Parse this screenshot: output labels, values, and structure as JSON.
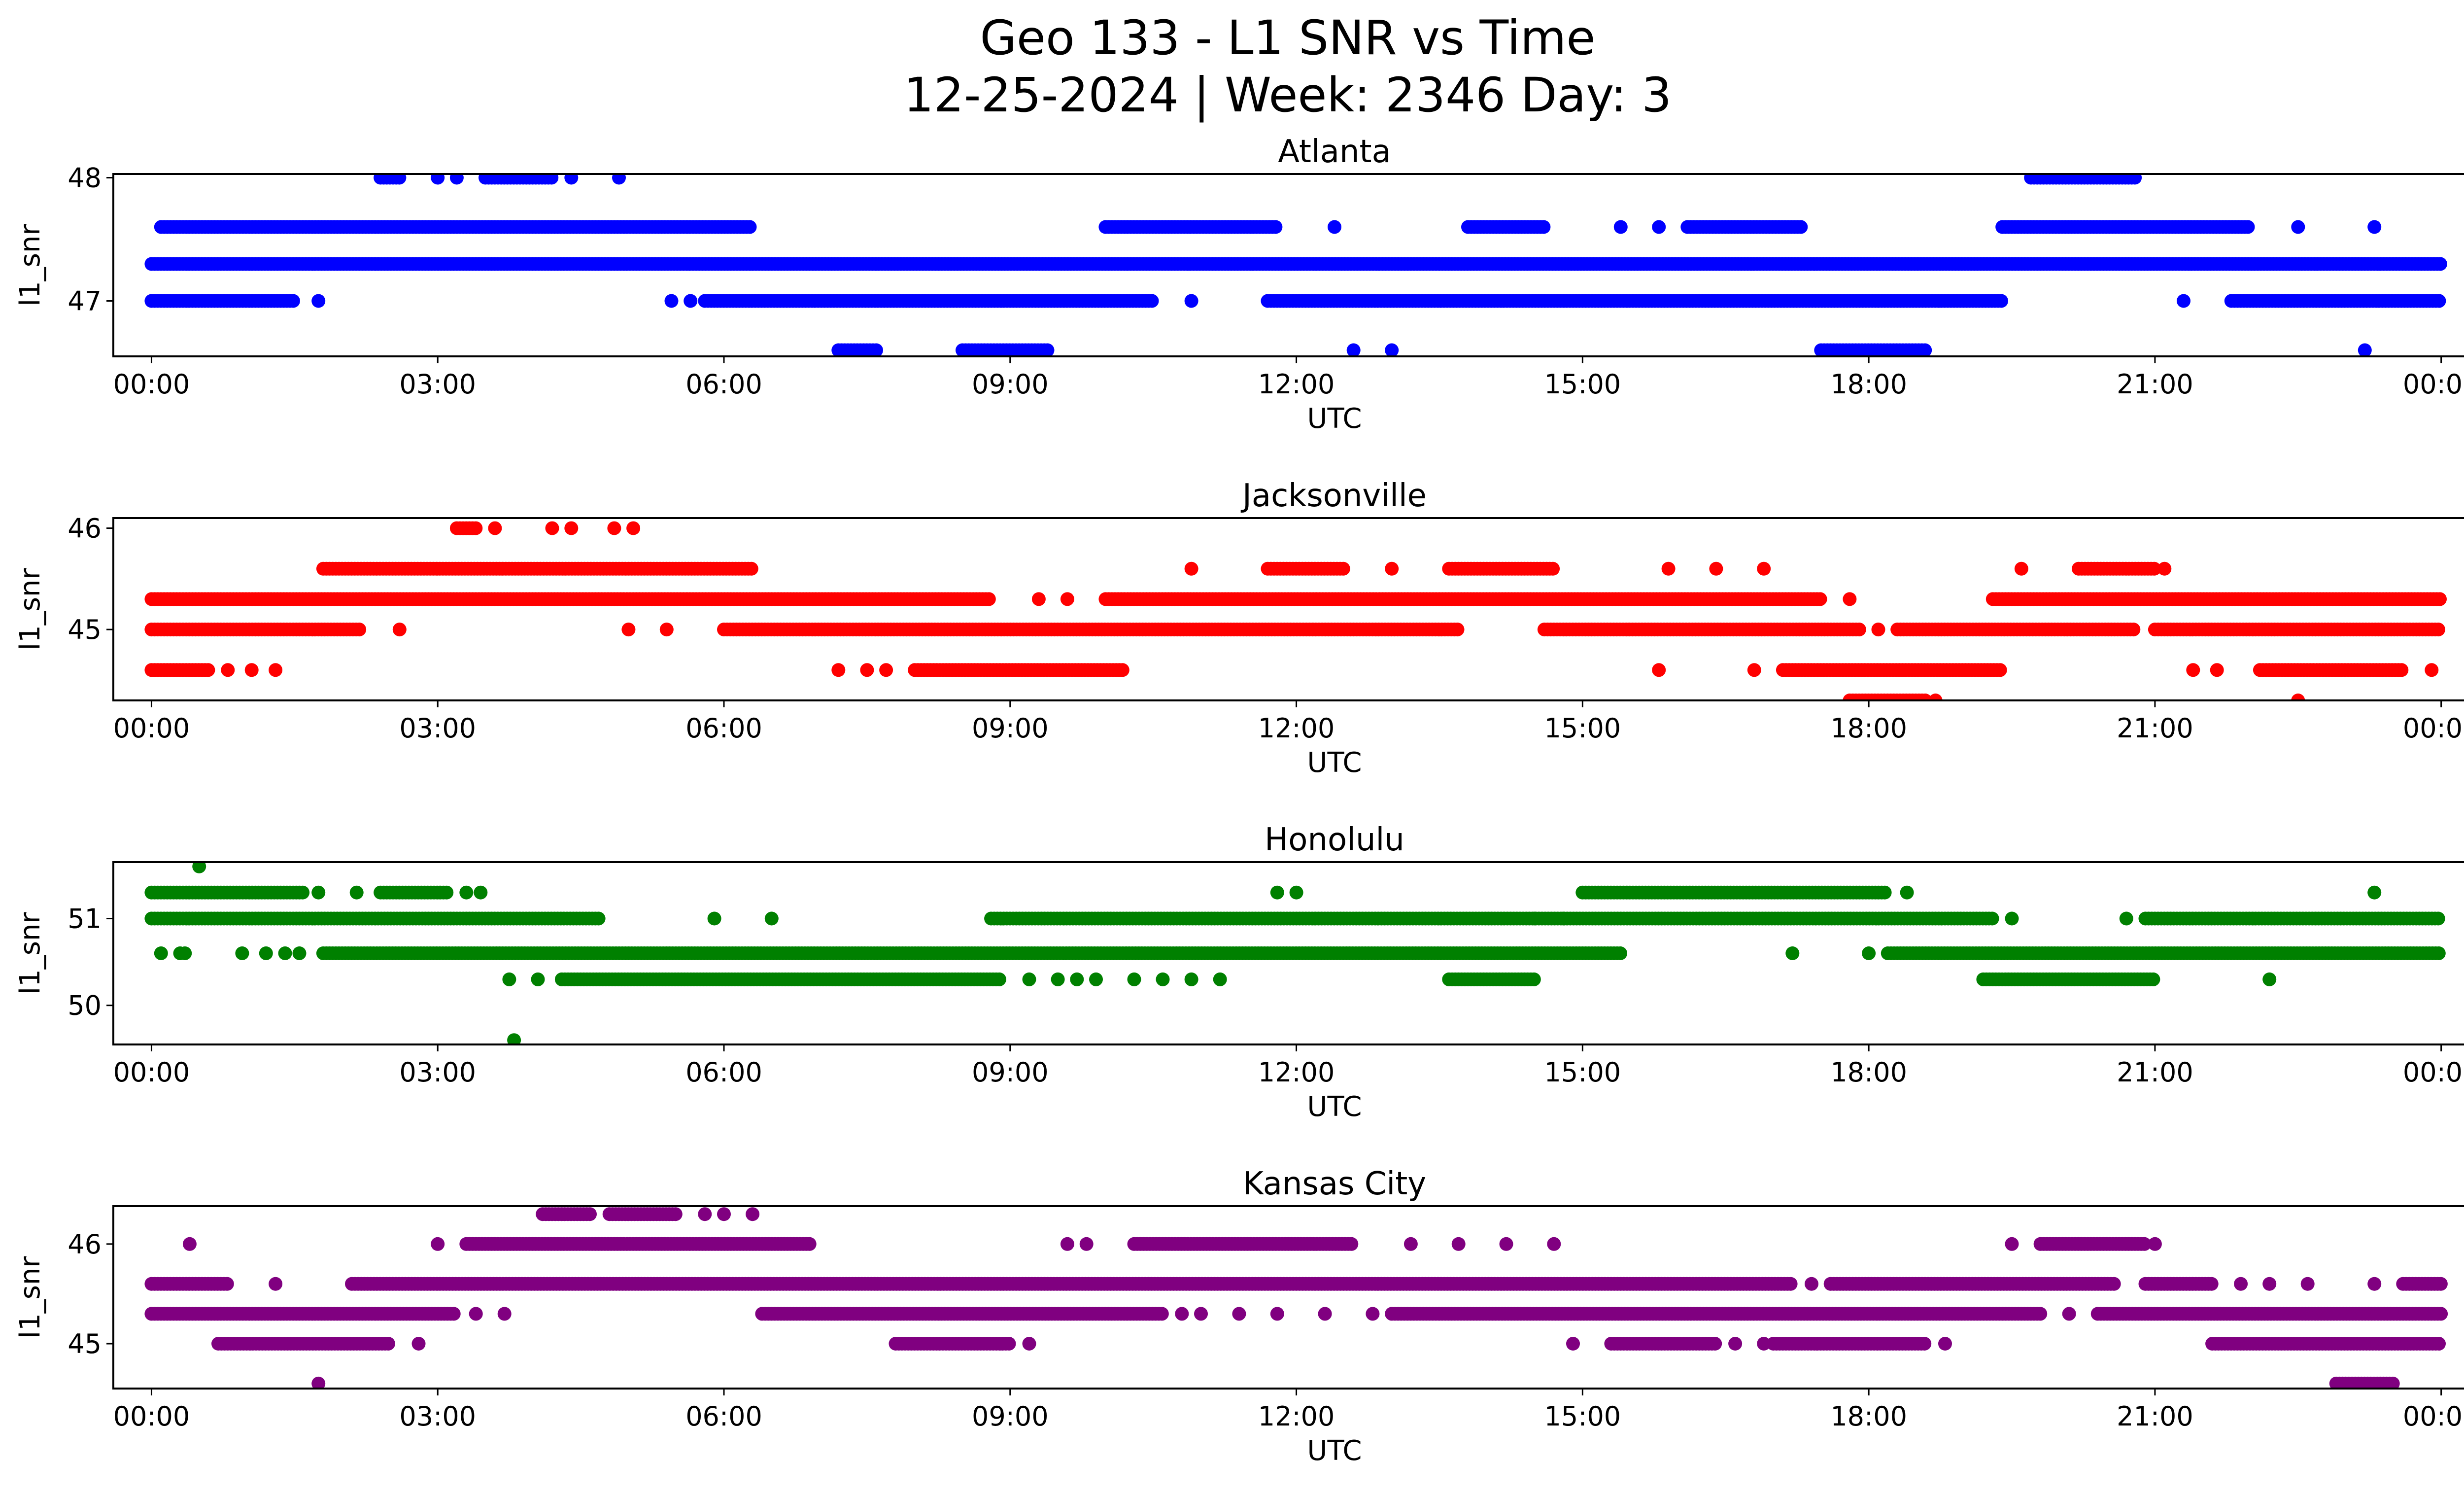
{
  "figure": {
    "title_line1": "Geo 133 - L1 SNR vs Time",
    "title_line2": "12-25-2024 | Week: 2346 Day: 3"
  },
  "chart_data": [
    {
      "type": "scatter",
      "title": "Atlanta",
      "xlabel": "UTC",
      "ylabel": "l1_snr",
      "color": "#0000ff",
      "xlim": [
        -0.4,
        25.2
      ],
      "ylim": [
        46.55,
        48.03
      ],
      "xticks": [
        "00:00",
        "03:00",
        "06:00",
        "09:00",
        "12:00",
        "15:00",
        "18:00",
        "21:00",
        "00:00"
      ],
      "yticks": [
        47,
        48
      ],
      "grid": false,
      "segments": [
        {
          "y": 47.3,
          "ranges": [
            [
              0.0,
              24.0
            ]
          ]
        },
        {
          "y": 47.6,
          "ranges": [
            [
              0.1,
              6.3
            ],
            [
              10.0,
              11.8
            ],
            [
              13.8,
              14.6
            ],
            [
              16.1,
              17.3
            ],
            [
              19.4,
              22.0
            ]
          ]
        },
        {
          "y": 47.0,
          "ranges": [
            [
              0.0,
              1.5
            ],
            [
              5.8,
              10.5
            ],
            [
              11.7,
              19.4
            ],
            [
              21.8,
              24.0
            ]
          ]
        },
        {
          "y": 48.0,
          "ranges": [
            [
              2.4,
              2.6
            ],
            [
              3.5,
              4.2
            ],
            [
              19.7,
              20.8
            ]
          ]
        },
        {
          "y": 46.6,
          "ranges": [
            [
              7.2,
              7.6
            ],
            [
              8.5,
              9.4
            ],
            [
              17.5,
              18.6
            ]
          ]
        }
      ],
      "points": [
        {
          "x": 1.75,
          "y": 47.0
        },
        {
          "x": 5.45,
          "y": 47.0
        },
        {
          "x": 5.65,
          "y": 47.0
        },
        {
          "x": 10.9,
          "y": 47.0
        },
        {
          "x": 21.3,
          "y": 47.0
        },
        {
          "x": 3.0,
          "y": 48.0
        },
        {
          "x": 3.2,
          "y": 48.0
        },
        {
          "x": 4.4,
          "y": 48.0
        },
        {
          "x": 4.9,
          "y": 48.0
        },
        {
          "x": 12.4,
          "y": 47.6
        },
        {
          "x": 15.4,
          "y": 47.6
        },
        {
          "x": 15.8,
          "y": 47.6
        },
        {
          "x": 22.5,
          "y": 47.6
        },
        {
          "x": 23.3,
          "y": 47.6
        },
        {
          "x": 12.6,
          "y": 46.6
        },
        {
          "x": 13.0,
          "y": 46.6
        },
        {
          "x": 23.2,
          "y": 46.6
        }
      ]
    },
    {
      "type": "scatter",
      "title": "Jacksonville",
      "xlabel": "UTC",
      "ylabel": "l1_snr",
      "color": "#ff0000",
      "xlim": [
        -0.4,
        25.2
      ],
      "ylim": [
        44.3,
        46.1
      ],
      "xticks": [
        "00:00",
        "03:00",
        "06:00",
        "09:00",
        "12:00",
        "15:00",
        "18:00",
        "21:00",
        "00:00"
      ],
      "yticks": [
        45,
        46
      ],
      "grid": false,
      "segments": [
        {
          "y": 45.3,
          "ranges": [
            [
              0.0,
              8.8
            ],
            [
              10.0,
              17.5
            ],
            [
              19.3,
              24.0
            ]
          ]
        },
        {
          "y": 45.0,
          "ranges": [
            [
              0.0,
              2.2
            ],
            [
              6.0,
              13.7
            ],
            [
              14.6,
              17.9
            ],
            [
              18.3,
              20.8
            ],
            [
              21.0,
              24.0
            ]
          ]
        },
        {
          "y": 44.6,
          "ranges": [
            [
              0.0,
              0.6
            ],
            [
              8.0,
              10.2
            ],
            [
              17.1,
              19.4
            ],
            [
              22.1,
              23.6
            ]
          ]
        },
        {
          "y": 45.6,
          "ranges": [
            [
              1.8,
              6.3
            ],
            [
              11.7,
              12.5
            ],
            [
              13.6,
              14.7
            ],
            [
              20.2,
              21.0
            ]
          ]
        },
        {
          "y": 44.3,
          "ranges": [
            [
              17.8,
              18.6
            ]
          ]
        },
        {
          "y": 46.0,
          "ranges": [
            [
              3.2,
              3.4
            ]
          ]
        }
      ],
      "points": [
        {
          "x": 0.8,
          "y": 44.6
        },
        {
          "x": 1.05,
          "y": 44.6
        },
        {
          "x": 1.3,
          "y": 44.6
        },
        {
          "x": 7.2,
          "y": 44.6
        },
        {
          "x": 7.5,
          "y": 44.6
        },
        {
          "x": 7.7,
          "y": 44.6
        },
        {
          "x": 15.8,
          "y": 44.6
        },
        {
          "x": 16.8,
          "y": 44.6
        },
        {
          "x": 21.4,
          "y": 44.6
        },
        {
          "x": 21.65,
          "y": 44.6
        },
        {
          "x": 23.9,
          "y": 44.6
        },
        {
          "x": 2.6,
          "y": 45.0
        },
        {
          "x": 5.0,
          "y": 45.0
        },
        {
          "x": 5.4,
          "y": 45.0
        },
        {
          "x": 18.1,
          "y": 45.0
        },
        {
          "x": 9.3,
          "y": 45.3
        },
        {
          "x": 9.6,
          "y": 45.3
        },
        {
          "x": 17.8,
          "y": 45.3
        },
        {
          "x": 10.9,
          "y": 45.6
        },
        {
          "x": 13.0,
          "y": 45.6
        },
        {
          "x": 15.9,
          "y": 45.6
        },
        {
          "x": 16.4,
          "y": 45.6
        },
        {
          "x": 16.9,
          "y": 45.6
        },
        {
          "x": 19.6,
          "y": 45.6
        },
        {
          "x": 21.1,
          "y": 45.6
        },
        {
          "x": 3.6,
          "y": 46.0
        },
        {
          "x": 4.2,
          "y": 46.0
        },
        {
          "x": 4.4,
          "y": 46.0
        },
        {
          "x": 4.85,
          "y": 46.0
        },
        {
          "x": 5.05,
          "y": 46.0
        },
        {
          "x": 22.5,
          "y": 44.3
        },
        {
          "x": 18.7,
          "y": 44.3
        }
      ]
    },
    {
      "type": "scatter",
      "title": "Honolulu",
      "xlabel": "UTC",
      "ylabel": "l1_snr",
      "color": "#008000",
      "xlim": [
        -0.4,
        25.2
      ],
      "ylim": [
        49.55,
        51.65
      ],
      "xticks": [
        "00:00",
        "03:00",
        "06:00",
        "09:00",
        "12:00",
        "15:00",
        "18:00",
        "21:00",
        "00:00"
      ],
      "yticks": [
        50,
        51
      ],
      "grid": false,
      "segments": [
        {
          "y": 51.0,
          "ranges": [
            [
              0.0,
              4.7
            ],
            [
              8.8,
              19.3
            ],
            [
              20.9,
              24.0
            ]
          ]
        },
        {
          "y": 51.3,
          "ranges": [
            [
              0.0,
              1.6
            ],
            [
              2.4,
              3.1
            ],
            [
              15.0,
              18.2
            ]
          ]
        },
        {
          "y": 50.6,
          "ranges": [
            [
              1.8,
              15.4
            ],
            [
              18.2,
              24.0
            ]
          ]
        },
        {
          "y": 50.3,
          "ranges": [
            [
              4.3,
              8.9
            ],
            [
              13.6,
              14.5
            ],
            [
              19.2,
              21.0
            ]
          ]
        }
      ],
      "points": [
        {
          "x": 0.5,
          "y": 51.6
        },
        {
          "x": 3.8,
          "y": 49.6
        },
        {
          "x": 0.1,
          "y": 50.6
        },
        {
          "x": 0.3,
          "y": 50.6
        },
        {
          "x": 0.35,
          "y": 50.6
        },
        {
          "x": 0.95,
          "y": 50.6
        },
        {
          "x": 1.2,
          "y": 50.6
        },
        {
          "x": 1.4,
          "y": 50.6
        },
        {
          "x": 1.55,
          "y": 50.6
        },
        {
          "x": 17.2,
          "y": 50.6
        },
        {
          "x": 18.0,
          "y": 50.6
        },
        {
          "x": 3.75,
          "y": 50.3
        },
        {
          "x": 4.05,
          "y": 50.3
        },
        {
          "x": 9.2,
          "y": 50.3
        },
        {
          "x": 9.5,
          "y": 50.3
        },
        {
          "x": 9.7,
          "y": 50.3
        },
        {
          "x": 9.9,
          "y": 50.3
        },
        {
          "x": 10.3,
          "y": 50.3
        },
        {
          "x": 10.6,
          "y": 50.3
        },
        {
          "x": 10.9,
          "y": 50.3
        },
        {
          "x": 11.2,
          "y": 50.3
        },
        {
          "x": 22.2,
          "y": 50.3
        },
        {
          "x": 1.75,
          "y": 51.3
        },
        {
          "x": 2.15,
          "y": 51.3
        },
        {
          "x": 3.3,
          "y": 51.3
        },
        {
          "x": 3.45,
          "y": 51.3
        },
        {
          "x": 11.8,
          "y": 51.3
        },
        {
          "x": 12.0,
          "y": 51.3
        },
        {
          "x": 18.4,
          "y": 51.3
        },
        {
          "x": 23.3,
          "y": 51.3
        },
        {
          "x": 5.9,
          "y": 51.0
        },
        {
          "x": 6.5,
          "y": 51.0
        },
        {
          "x": 14.5,
          "y": 51.0
        },
        {
          "x": 14.8,
          "y": 51.0
        },
        {
          "x": 19.5,
          "y": 51.0
        },
        {
          "x": 20.7,
          "y": 51.0
        }
      ]
    },
    {
      "type": "scatter",
      "title": "Kansas City",
      "xlabel": "UTC",
      "ylabel": "l1_snr",
      "color": "#800080",
      "xlim": [
        -0.4,
        25.2
      ],
      "ylim": [
        44.55,
        46.38
      ],
      "xticks": [
        "00:00",
        "03:00",
        "06:00",
        "09:00",
        "12:00",
        "15:00",
        "18:00",
        "21:00",
        "00:00"
      ],
      "yticks": [
        45,
        46
      ],
      "grid": false,
      "segments": [
        {
          "y": 45.6,
          "ranges": [
            [
              0.0,
              0.8
            ],
            [
              2.1,
              17.2
            ],
            [
              17.6,
              20.6
            ],
            [
              20.9,
              21.6
            ],
            [
              23.6,
              24.0
            ]
          ]
        },
        {
          "y": 45.3,
          "ranges": [
            [
              0.0,
              3.2
            ],
            [
              6.4,
              10.6
            ],
            [
              13.0,
              19.8
            ],
            [
              20.4,
              24.0
            ]
          ]
        },
        {
          "y": 45.0,
          "ranges": [
            [
              0.7,
              2.5
            ],
            [
              7.8,
              9.0
            ],
            [
              15.3,
              16.4
            ],
            [
              17.0,
              18.6
            ],
            [
              21.6,
              24.0
            ]
          ]
        },
        {
          "y": 46.0,
          "ranges": [
            [
              3.3,
              6.9
            ],
            [
              10.3,
              12.6
            ],
            [
              19.8,
              20.9
            ]
          ]
        },
        {
          "y": 46.3,
          "ranges": [
            [
              4.1,
              4.6
            ],
            [
              4.8,
              5.5
            ]
          ]
        },
        {
          "y": 44.6,
          "ranges": [
            [
              22.9,
              23.5
            ]
          ]
        }
      ],
      "points": [
        {
          "x": 0.4,
          "y": 46.0
        },
        {
          "x": 1.3,
          "y": 45.6
        },
        {
          "x": 1.75,
          "y": 44.6
        },
        {
          "x": 2.8,
          "y": 45.0
        },
        {
          "x": 3.0,
          "y": 46.0
        },
        {
          "x": 3.4,
          "y": 45.3
        },
        {
          "x": 3.7,
          "y": 45.3
        },
        {
          "x": 5.8,
          "y": 46.3
        },
        {
          "x": 6.0,
          "y": 46.3
        },
        {
          "x": 6.3,
          "y": 46.3
        },
        {
          "x": 9.2,
          "y": 45.0
        },
        {
          "x": 9.6,
          "y": 46.0
        },
        {
          "x": 9.8,
          "y": 46.0
        },
        {
          "x": 10.8,
          "y": 45.3
        },
        {
          "x": 11.0,
          "y": 45.3
        },
        {
          "x": 11.4,
          "y": 45.3
        },
        {
          "x": 11.8,
          "y": 45.3
        },
        {
          "x": 12.3,
          "y": 45.3
        },
        {
          "x": 12.8,
          "y": 45.3
        },
        {
          "x": 13.2,
          "y": 46.0
        },
        {
          "x": 13.7,
          "y": 46.0
        },
        {
          "x": 14.2,
          "y": 46.0
        },
        {
          "x": 14.7,
          "y": 46.0
        },
        {
          "x": 14.9,
          "y": 45.0
        },
        {
          "x": 16.6,
          "y": 45.0
        },
        {
          "x": 16.9,
          "y": 45.0
        },
        {
          "x": 17.4,
          "y": 45.6
        },
        {
          "x": 18.8,
          "y": 45.0
        },
        {
          "x": 19.5,
          "y": 46.0
        },
        {
          "x": 20.1,
          "y": 45.3
        },
        {
          "x": 21.0,
          "y": 46.0
        },
        {
          "x": 21.9,
          "y": 45.6
        },
        {
          "x": 22.2,
          "y": 45.6
        },
        {
          "x": 22.6,
          "y": 45.6
        },
        {
          "x": 23.3,
          "y": 45.6
        }
      ]
    }
  ]
}
